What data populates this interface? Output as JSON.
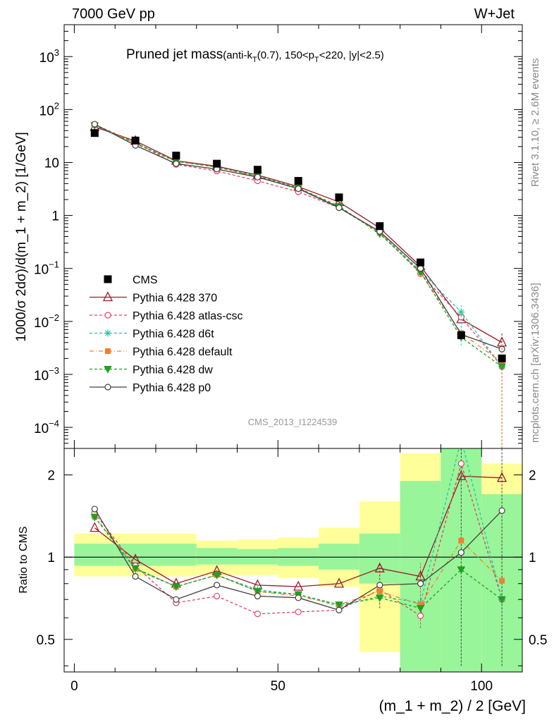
{
  "header": {
    "left": "7000 GeV pp",
    "right": "W+Jet"
  },
  "side_labels": {
    "rivet": "Rivet 3.1.10, ≥ 2.6M events",
    "mcplots": "mcplots.cern.ch [arXiv:1306.3436]"
  },
  "watermark": "CMS_2013_I1224539",
  "chart_data": [
    {
      "type": "line",
      "title_main": "Pruned jet mass",
      "title_sub_parts": [
        "(anti-k",
        "T",
        "(0.7), 150<p",
        "T",
        "<220, |y|<2.5)"
      ],
      "ylabel": "1000/σ 2dσ)/d(m_1 + m_2) [1/GeV]",
      "yscale": "log",
      "ylim": [
        4e-05,
        4000
      ],
      "xlim": [
        -2.5,
        110
      ],
      "ytick_labels": [
        {
          "value": 0.0001,
          "base": "10",
          "exp": "−4"
        },
        {
          "value": 0.001,
          "base": "10",
          "exp": "−3"
        },
        {
          "value": 0.01,
          "base": "10",
          "exp": "−2"
        },
        {
          "value": 0.1,
          "base": "10",
          "exp": "−1"
        },
        {
          "value": 1,
          "base": "1",
          "exp": ""
        },
        {
          "value": 10,
          "base": "10",
          "exp": ""
        },
        {
          "value": 100,
          "base": "10",
          "exp": "2"
        },
        {
          "value": 1000,
          "base": "10",
          "exp": "3"
        }
      ],
      "legend_position": "lower-left",
      "x": [
        5,
        15,
        25,
        35,
        45,
        55,
        65,
        75,
        85,
        95,
        105
      ],
      "data": {
        "name": "CMS",
        "values": [
          36,
          26,
          13.5,
          9.5,
          7.3,
          4.5,
          2.2,
          0.63,
          0.13,
          0.0055,
          0.002
        ]
      },
      "series": [
        {
          "name": "Pythia 6.428 370",
          "color": "#9a1a2a",
          "dash": "",
          "marker": "triangle",
          "values": [
            47,
            25.5,
            10.8,
            8.5,
            5.8,
            3.5,
            1.8,
            0.58,
            0.11,
            0.011,
            0.004
          ]
        },
        {
          "name": "Pythia 6.428 atlas-csc",
          "color": "#e8406a",
          "dash": "4,3",
          "marker": "open-circle",
          "values": [
            52,
            24,
            9.2,
            6.9,
            4.5,
            2.8,
            1.4,
            0.48,
            0.08,
            0.012,
            0.0014
          ]
        },
        {
          "name": "Pythia 6.428 d6t",
          "color": "#20c8a0",
          "dash": "4,3",
          "marker": "asterisk",
          "values": [
            50,
            22.5,
            10.5,
            8.2,
            5.6,
            3.3,
            1.45,
            0.48,
            0.09,
            0.015,
            0.0014
          ]
        },
        {
          "name": "Pythia 6.428 default",
          "color": "#f08030",
          "dash": "6,3,1,3",
          "marker": "square",
          "values": [
            51,
            23,
            10.5,
            8.2,
            5.4,
            3.3,
            1.45,
            0.47,
            0.085,
            0.006,
            0.0017
          ]
        },
        {
          "name": "Pythia 6.428 dw",
          "color": "#20a020",
          "dash": "4,3",
          "marker": "down-triangle",
          "values": [
            50,
            23.5,
            10.5,
            8.2,
            5.5,
            3.3,
            1.5,
            0.45,
            0.085,
            0.005,
            0.0014
          ]
        },
        {
          "name": "Pythia 6.428 p0",
          "color": "#404040",
          "dash": "",
          "marker": "open-circle",
          "values": [
            53,
            21,
            9.5,
            7.5,
            5.3,
            3.2,
            1.4,
            0.5,
            0.1,
            0.0057,
            0.003
          ]
        }
      ]
    },
    {
      "type": "line",
      "ylabel": "Ratio to CMS",
      "xlabel": "(m_1 + m_2) / 2 [GeV]",
      "yscale": "log",
      "ylim": [
        0.38,
        2.5
      ],
      "xlim": [
        -2.5,
        110
      ],
      "yticks": [
        0.5,
        1,
        2
      ],
      "ytick_labels": [
        "0.5",
        "1",
        "2"
      ],
      "xticks": [
        0,
        50,
        100
      ],
      "xtick_labels": [
        "0",
        "50",
        "100"
      ],
      "bin_edges": [
        0,
        10,
        20,
        30,
        40,
        50,
        60,
        70,
        80,
        90,
        100,
        110
      ],
      "band_inner": [
        [
          0.93,
          1.12
        ],
        [
          0.93,
          1.12
        ],
        [
          0.93,
          1.12
        ],
        [
          0.94,
          1.08
        ],
        [
          0.94,
          1.07
        ],
        [
          0.93,
          1.08
        ],
        [
          0.9,
          1.12
        ],
        [
          0.8,
          1.22
        ],
        [
          0.38,
          1.9
        ],
        [
          0.38,
          2.5
        ],
        [
          0.38,
          1.7
        ]
      ],
      "band_outer": [
        [
          0.85,
          1.22
        ],
        [
          0.85,
          1.22
        ],
        [
          0.85,
          1.22
        ],
        [
          0.86,
          1.15
        ],
        [
          0.86,
          1.16
        ],
        [
          0.84,
          1.18
        ],
        [
          0.78,
          1.28
        ],
        [
          0.45,
          1.6
        ],
        [
          0.38,
          2.4
        ],
        [
          0.38,
          2.5
        ],
        [
          0.38,
          2.2
        ]
      ],
      "ratio_series": [
        {
          "name": "Pythia 6.428 370",
          "values": [
            1.28,
            0.98,
            0.8,
            0.89,
            0.79,
            0.78,
            0.8,
            0.91,
            0.85,
            1.98,
            1.95
          ]
        },
        {
          "name": "Pythia 6.428 atlas-csc",
          "values": [
            1.45,
            0.93,
            0.68,
            0.72,
            0.62,
            0.63,
            0.64,
            0.76,
            0.61,
            2.2,
            0.7
          ]
        },
        {
          "name": "Pythia 6.428 d6t",
          "values": [
            1.4,
            0.9,
            0.78,
            0.86,
            0.76,
            0.73,
            0.66,
            0.72,
            0.68,
            2.7,
            0.7
          ]
        },
        {
          "name": "Pythia 6.428 default",
          "values": [
            1.41,
            0.91,
            0.78,
            0.86,
            0.75,
            0.72,
            0.67,
            0.75,
            0.67,
            1.15,
            0.82
          ]
        },
        {
          "name": "Pythia 6.428 dw",
          "values": [
            1.4,
            0.91,
            0.78,
            0.86,
            0.75,
            0.73,
            0.67,
            0.71,
            0.65,
            0.9,
            0.7
          ]
        },
        {
          "name": "Pythia 6.428 p0",
          "values": [
            1.5,
            0.85,
            0.7,
            0.79,
            0.72,
            0.71,
            0.64,
            0.79,
            0.8,
            1.04,
            1.48
          ]
        }
      ]
    }
  ]
}
